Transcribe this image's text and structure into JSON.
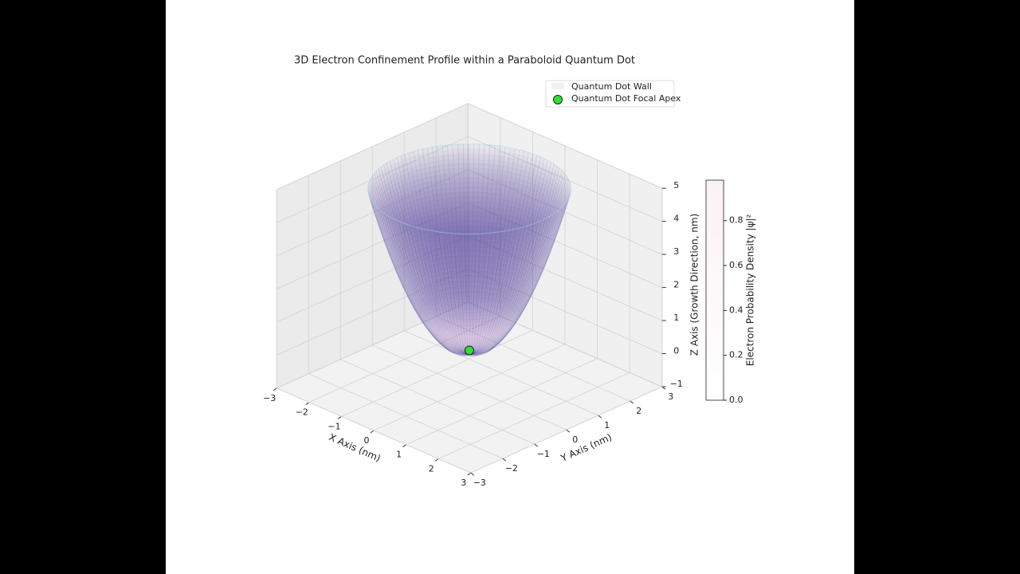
{
  "chart_data": {
    "type": "surface3d",
    "title": "3D Electron Confinement Profile within a Paraboloid Quantum Dot",
    "xlabel": "X Axis (nm)",
    "ylabel": "Y Axis (nm)",
    "zlabel": "Z Axis (Growth Direction, nm)",
    "xlim": [
      -3,
      3
    ],
    "ylim": [
      -3,
      3
    ],
    "zlim": [
      -1,
      5
    ],
    "xticks": [
      {
        "value": -3,
        "label": "−3"
      },
      {
        "value": -2,
        "label": "−2"
      },
      {
        "value": -1,
        "label": "−1"
      },
      0,
      1,
      2,
      3
    ],
    "yticks": [
      {
        "value": -3,
        "label": "−3"
      },
      {
        "value": -2,
        "label": "−2"
      },
      {
        "value": -1,
        "label": "−1"
      },
      0,
      1,
      2,
      3
    ],
    "zticks": [
      {
        "value": -1,
        "label": "−1"
      },
      0,
      1,
      2,
      3,
      4,
      5
    ],
    "surface": {
      "name": "Quantum Dot Wall",
      "color": "#4b3a9c"
    },
    "points": {
      "name": "Quantum Dot Focal Apex",
      "color": "#33dd33",
      "x": [
        0
      ],
      "y": [
        0
      ],
      "z": [
        0
      ]
    },
    "colorbar": {
      "label": "Electron Probability Density |ψ|²",
      "lim": [
        0,
        0.98
      ],
      "ticks": [
        {
          "value": 0,
          "label": "0.0"
        },
        0.2,
        0.4,
        0.6,
        0.8
      ]
    },
    "legend": "upper right",
    "grid": true
  }
}
